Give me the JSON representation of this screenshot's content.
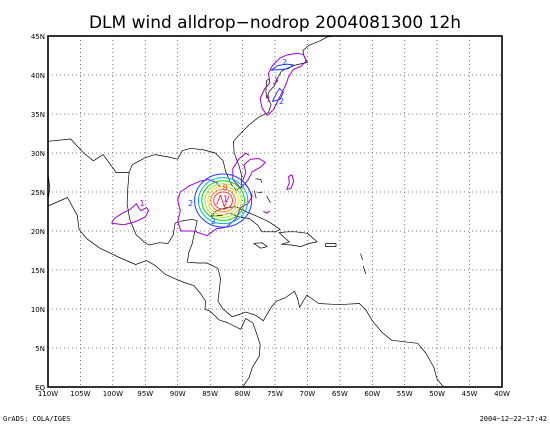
{
  "title": "DLM wind alldrop−nodrop 2004081300 12h",
  "footer_left": "GrADS: COLA/IGES",
  "footer_right": "2004−12−22−17:42",
  "chart_data": {
    "type": "contour-map",
    "title": "DLM wind alldrop−nodrop 2004081300 12h",
    "xlim": [
      -110,
      -40
    ],
    "ylim": [
      0,
      45
    ],
    "x_tick_labels": [
      "110W",
      "105W",
      "100W",
      "95W",
      "90W",
      "85W",
      "80W",
      "75W",
      "70W",
      "65W",
      "60W",
      "55W",
      "50W",
      "45W",
      "40W"
    ],
    "y_tick_labels": [
      "EQ",
      "5N",
      "10N",
      "15N",
      "20N",
      "25N",
      "30N",
      "35N",
      "40N",
      "45N"
    ],
    "grid": true,
    "colors": {
      "c1": "#a000c8",
      "c2": "#1e3cff",
      "c3": "#00b4d2",
      "c4": "#00dc00",
      "c5": "#a0e632",
      "c6": "#e6dc32",
      "c7": "#f08228",
      "c8": "#fa3c3c"
    },
    "contour_labels": [
      {
        "text": "1",
        "lon": -95.5,
        "lat": 23.2,
        "color": "c1"
      },
      {
        "text": "2",
        "lon": -88.0,
        "lat": 23.2,
        "color": "c2"
      },
      {
        "text": "2",
        "lon": -84.5,
        "lat": 20.9,
        "color": "c2"
      },
      {
        "text": "8",
        "lon": -82.7,
        "lat": 25.2,
        "color": "c8"
      },
      {
        "text": "1",
        "lon": -82.6,
        "lat": 23.8,
        "color": "c1"
      },
      {
        "text": "2",
        "lon": -73.5,
        "lat": 41.3,
        "color": "c2"
      },
      {
        "text": "1",
        "lon": -76.0,
        "lat": 36.6,
        "color": "c1"
      },
      {
        "text": "2",
        "lon": -74.0,
        "lat": 36.3,
        "color": "c2"
      }
    ]
  }
}
